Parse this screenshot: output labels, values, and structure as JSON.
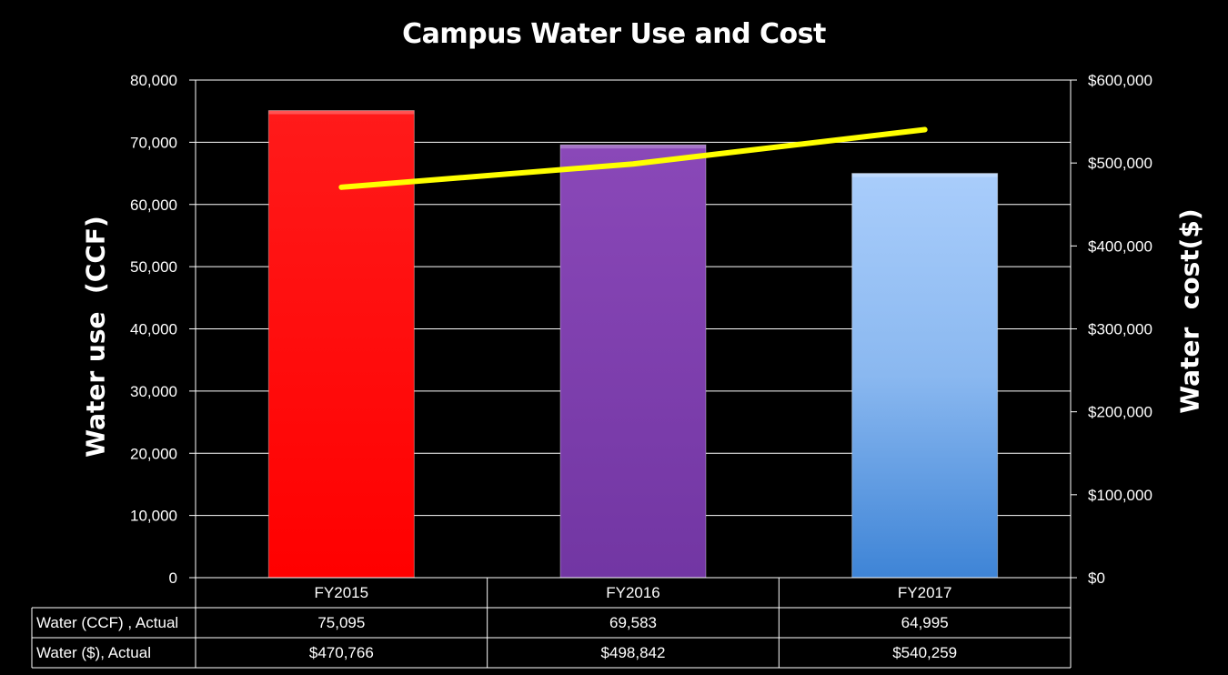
{
  "chart_data": {
    "type": "bar",
    "title": "Campus Water Use and Cost",
    "categories": [
      "FY2015",
      "FY2016",
      "FY2017"
    ],
    "series": [
      {
        "name": "Water (CCF) , Actual",
        "axis": "left",
        "render": "bar",
        "values": [
          75095,
          69583,
          64995
        ],
        "labels": [
          "75,095",
          "69,583",
          "64,995"
        ],
        "colors": [
          "#ff0000",
          "#7d3aac",
          "#7fb4ef"
        ]
      },
      {
        "name": "Water ($), Actual",
        "axis": "right",
        "render": "line",
        "values": [
          470766,
          498842,
          540259
        ],
        "labels": [
          "$470,766",
          "$498,842",
          "$540,259"
        ],
        "color": "#ffff00"
      }
    ],
    "ylabel": "Water use  (CCF)",
    "y2label": "Water  cost($)",
    "ylim": [
      0,
      80000
    ],
    "y2lim": [
      0,
      600000
    ],
    "yticks": [
      "0",
      "10,000",
      "20,000",
      "30,000",
      "40,000",
      "50,000",
      "60,000",
      "70,000",
      "80,000"
    ],
    "y2ticks": [
      "$0",
      "$100,000",
      "$200,000",
      "$300,000",
      "$400,000",
      "$500,000",
      "$600,000"
    ],
    "grid": true,
    "legend": "data-table"
  }
}
